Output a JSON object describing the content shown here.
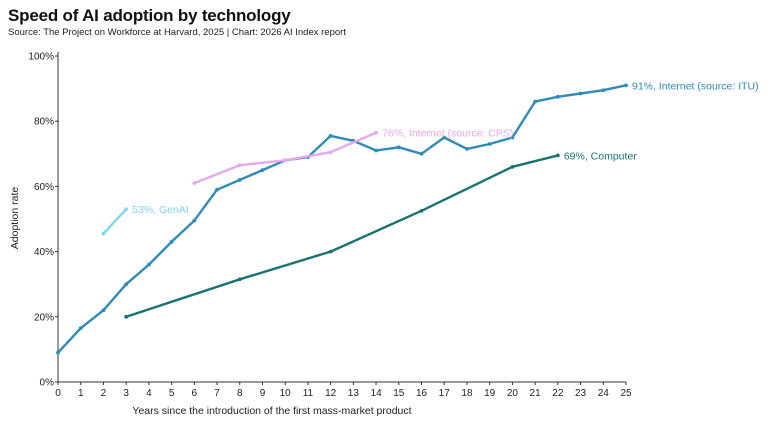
{
  "title": "Speed of AI adoption by technology",
  "subtitle": "Source: The Project on Workforce at Harvard, 2025 | Chart: 2026 AI Index report",
  "chart_data": {
    "type": "line",
    "xlabel": "Years since the introduction of the first mass-market product",
    "ylabel": "Adoption rate",
    "xlim": [
      0,
      25
    ],
    "ylim": [
      0,
      100
    ],
    "x_ticks": [
      "0",
      "1",
      "2",
      "3",
      "4",
      "5",
      "6",
      "7",
      "8",
      "9",
      "10",
      "11",
      "12",
      "13",
      "14",
      "15",
      "16",
      "17",
      "18",
      "19",
      "20",
      "21",
      "22",
      "23",
      "24",
      "25"
    ],
    "y_ticks": [
      "0%",
      "20%",
      "40%",
      "60%",
      "80%",
      "100%"
    ],
    "grid": false,
    "legend": "none (direct labels at line ends)",
    "series": [
      {
        "label": "91%, Internet (source: ITU)",
        "color": "#2f8bb8",
        "points": [
          [
            0,
            9
          ],
          [
            1,
            16.5
          ],
          [
            2,
            22
          ],
          [
            3,
            30
          ],
          [
            4,
            36
          ],
          [
            5,
            43
          ],
          [
            6,
            49.5
          ],
          [
            7,
            59
          ],
          [
            8,
            62
          ],
          [
            9,
            65
          ],
          [
            10,
            68
          ],
          [
            11,
            69
          ],
          [
            12,
            75.5
          ],
          [
            13,
            74
          ],
          [
            14,
            71
          ],
          [
            15,
            72
          ],
          [
            16,
            70
          ],
          [
            17,
            75
          ],
          [
            18,
            71.5
          ],
          [
            19,
            73
          ],
          [
            20,
            75
          ],
          [
            21,
            86
          ],
          [
            22,
            87.5
          ],
          [
            23,
            88.5
          ],
          [
            24,
            89.5
          ],
          [
            25,
            91
          ]
        ]
      },
      {
        "label": "76%, Internet (source: CPS)",
        "color": "#e6a8ec",
        "points": [
          [
            6,
            61
          ],
          [
            8,
            66.5
          ],
          [
            10,
            68
          ],
          [
            12,
            70.5
          ],
          [
            14,
            76.5
          ]
        ]
      },
      {
        "label": "53%, GenAI",
        "color": "#7fd6ee",
        "points": [
          [
            2,
            45.5
          ],
          [
            3,
            53
          ]
        ]
      },
      {
        "label": "69%, Computer",
        "color": "#1a7273",
        "points": [
          [
            3,
            20
          ],
          [
            8,
            31.5
          ],
          [
            12,
            40
          ],
          [
            16,
            52.5
          ],
          [
            20,
            66
          ],
          [
            22,
            69.5
          ]
        ]
      }
    ]
  }
}
